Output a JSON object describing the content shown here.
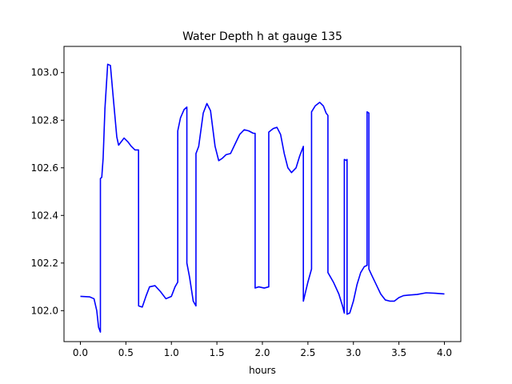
{
  "chart_data": {
    "type": "line",
    "title": "Water Depth h at gauge 135",
    "xlabel": "hours",
    "ylabel": "",
    "xlim": [
      -0.18,
      4.18
    ],
    "ylim": [
      101.87,
      103.11
    ],
    "xticks": [
      0.0,
      0.5,
      1.0,
      1.5,
      2.0,
      2.5,
      3.0,
      3.5,
      4.0
    ],
    "xtick_labels": [
      "0.0",
      "0.5",
      "1.0",
      "1.5",
      "2.0",
      "2.5",
      "3.0",
      "3.5",
      "4.0"
    ],
    "yticks": [
      102.0,
      102.2,
      102.4,
      102.6,
      102.8,
      103.0
    ],
    "ytick_labels": [
      "102.0",
      "102.2",
      "102.4",
      "102.6",
      "102.8",
      "103.0"
    ],
    "grid": false,
    "series": [
      {
        "color": "#0000ff",
        "x": [
          0.0,
          0.1,
          0.15,
          0.18,
          0.2,
          0.22,
          0.2201,
          0.235,
          0.25,
          0.27,
          0.3,
          0.33,
          0.36,
          0.4,
          0.42,
          0.45,
          0.48,
          0.52,
          0.56,
          0.6,
          0.639,
          0.64,
          0.68,
          0.72,
          0.76,
          0.82,
          0.88,
          0.94,
          1.0,
          1.04,
          1.07,
          1.0701,
          1.1,
          1.14,
          1.17,
          1.1701,
          1.2,
          1.24,
          1.27,
          1.2701,
          1.3,
          1.35,
          1.39,
          1.43,
          1.48,
          1.52,
          1.56,
          1.6,
          1.65,
          1.7,
          1.75,
          1.8,
          1.85,
          1.9,
          1.92,
          1.9201,
          1.96,
          2.02,
          2.07,
          2.0701,
          2.12,
          2.16,
          2.2,
          2.24,
          2.28,
          2.32,
          2.37,
          2.41,
          2.45,
          2.4501,
          2.5,
          2.54,
          2.5401,
          2.58,
          2.63,
          2.67,
          2.7,
          2.72,
          2.7201,
          2.78,
          2.84,
          2.88,
          2.9,
          2.9001,
          2.93,
          2.93,
          2.9301,
          2.96,
          3.0,
          3.04,
          3.08,
          3.12,
          3.15,
          3.1501,
          3.17,
          3.1701,
          3.2,
          3.25,
          3.3,
          3.35,
          3.4,
          3.45,
          3.5,
          3.55,
          3.6,
          3.7,
          3.8,
          3.9,
          4.0
        ],
        "y": [
          102.06,
          102.058,
          102.05,
          102.0,
          101.93,
          101.91,
          102.555,
          102.56,
          102.64,
          102.85,
          103.035,
          103.03,
          102.9,
          102.73,
          102.695,
          102.71,
          102.725,
          102.71,
          102.69,
          102.675,
          102.675,
          102.02,
          102.015,
          102.06,
          102.1,
          102.105,
          102.08,
          102.05,
          102.06,
          102.1,
          102.12,
          102.755,
          102.81,
          102.845,
          102.855,
          102.2,
          102.14,
          102.04,
          102.02,
          102.66,
          102.69,
          102.83,
          102.87,
          102.84,
          102.69,
          102.63,
          102.64,
          102.655,
          102.66,
          102.7,
          102.74,
          102.76,
          102.755,
          102.745,
          102.745,
          102.095,
          102.1,
          102.095,
          102.1,
          102.75,
          102.765,
          102.77,
          102.74,
          102.66,
          102.6,
          102.58,
          102.6,
          102.65,
          102.69,
          102.04,
          102.12,
          102.175,
          102.835,
          102.86,
          102.875,
          102.86,
          102.83,
          102.82,
          102.16,
          102.12,
          102.07,
          102.02,
          101.99,
          102.635,
          102.63,
          102.635,
          101.985,
          101.99,
          102.04,
          102.11,
          102.16,
          102.185,
          102.19,
          102.835,
          102.83,
          102.175,
          102.15,
          102.11,
          102.07,
          102.045,
          102.04,
          102.04,
          102.055,
          102.063,
          102.065,
          102.068,
          102.075,
          102.073,
          102.07
        ]
      }
    ]
  }
}
